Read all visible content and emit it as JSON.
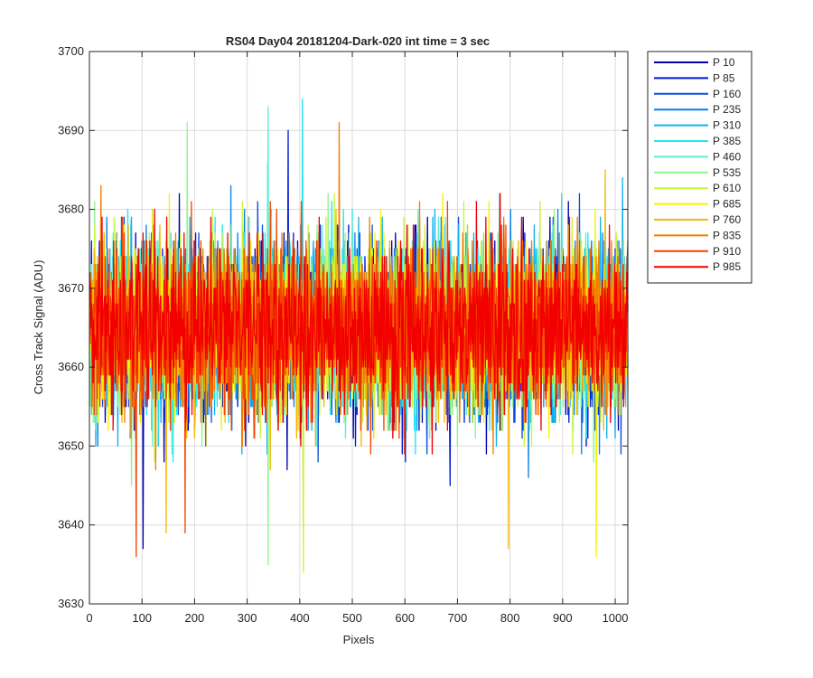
{
  "chart_data": {
    "type": "line",
    "title": "RS04 Day04 20181204-Dark-020 int time = 3 sec",
    "xlabel": "Pixels",
    "ylabel": "Cross Track Signal (ADU)",
    "xlim": [
      0,
      1024
    ],
    "ylim": [
      3630,
      3700
    ],
    "x_ticks": [
      0,
      100,
      200,
      300,
      400,
      500,
      600,
      700,
      800,
      900,
      1000
    ],
    "y_ticks": [
      3630,
      3640,
      3650,
      3660,
      3670,
      3680,
      3690,
      3700
    ],
    "grid": true,
    "legend_position": "outside-top-right",
    "x_range_per_series": [
      1,
      1024
    ],
    "noise_model": {
      "mean": 3665,
      "spread": 10,
      "shape": "signal ~ 3665 ADU with high-frequency noise; typical excursions 3650-3681, rare spikes to 3634-3694"
    },
    "notable_extremes": [
      {
        "series": "P 460",
        "x": 340,
        "y": 3693
      },
      {
        "series": "P 385",
        "x": 405,
        "y": 3694
      },
      {
        "series": "P 835",
        "x": 475,
        "y": 3691
      },
      {
        "series": "P 535",
        "x": 186,
        "y": 3691
      },
      {
        "series": "P 85",
        "x": 378,
        "y": 3690
      },
      {
        "series": "P 610",
        "x": 407,
        "y": 3634
      },
      {
        "series": "P 535",
        "x": 340,
        "y": 3635
      },
      {
        "series": "P 910",
        "x": 89,
        "y": 3636
      },
      {
        "series": "P 760",
        "x": 797,
        "y": 3637
      },
      {
        "series": "P 685",
        "x": 964,
        "y": 3636
      },
      {
        "series": "P 10",
        "x": 102,
        "y": 3637
      },
      {
        "series": "P 910",
        "x": 182,
        "y": 3639
      },
      {
        "series": "P 760",
        "x": 146,
        "y": 3639
      }
    ],
    "series": [
      {
        "name": "P 10",
        "color": "#0000b0"
      },
      {
        "name": "P 85",
        "color": "#0018d8"
      },
      {
        "name": "P 160",
        "color": "#0a4fdc"
      },
      {
        "name": "P 235",
        "color": "#0a7fe6"
      },
      {
        "name": "P 310",
        "color": "#0db2f0"
      },
      {
        "name": "P 385",
        "color": "#1fe6f2"
      },
      {
        "name": "P 460",
        "color": "#5fefcf"
      },
      {
        "name": "P 535",
        "color": "#8ef58c"
      },
      {
        "name": "P 610",
        "color": "#c8f53a"
      },
      {
        "name": "P 685",
        "color": "#f6f200"
      },
      {
        "name": "P 760",
        "color": "#f4b800"
      },
      {
        "name": "P 835",
        "color": "#f47d00"
      },
      {
        "name": "P 910",
        "color": "#f44400"
      },
      {
        "name": "P 985",
        "color": "#f20000"
      }
    ]
  }
}
